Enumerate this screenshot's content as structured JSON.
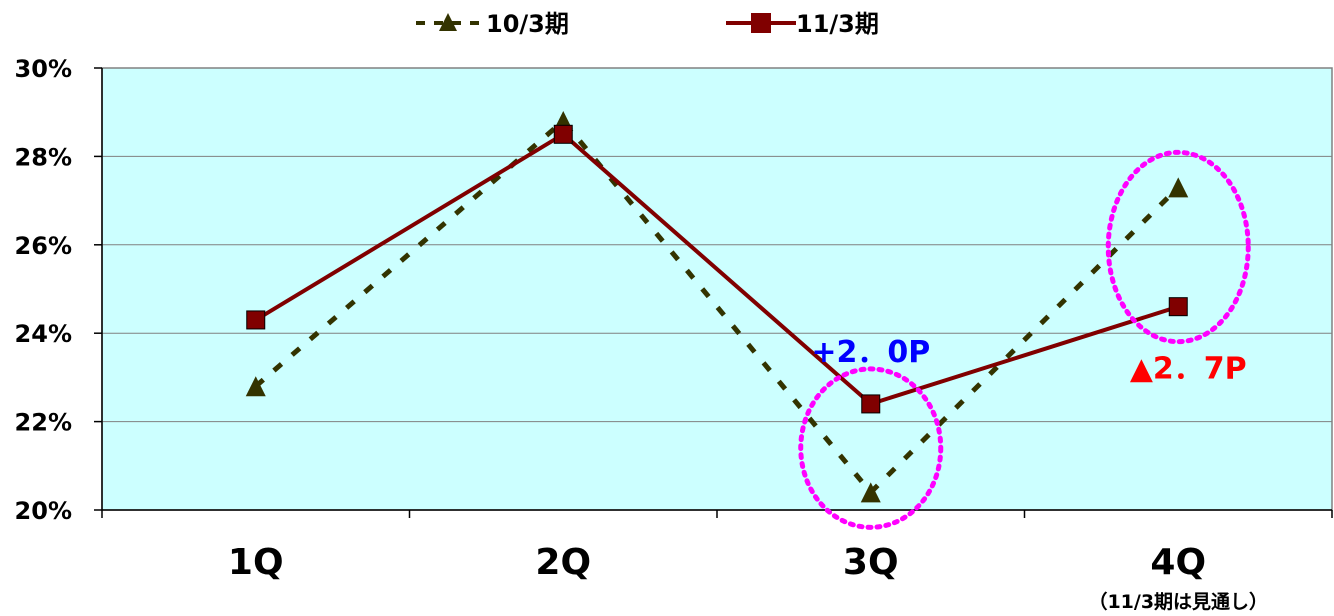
{
  "chart_data": {
    "type": "line",
    "categories": [
      "1Q",
      "2Q",
      "3Q",
      "4Q"
    ],
    "category_note": {
      "category": "4Q",
      "text": "（11/3期は見通し）"
    },
    "ylim": [
      20,
      30
    ],
    "yticks": [
      20,
      22,
      24,
      26,
      28,
      30
    ],
    "ytick_labels": [
      "20%",
      "22%",
      "24%",
      "26%",
      "28%",
      "30%"
    ],
    "grid": true,
    "legend": "top",
    "background_color": "#ccffff",
    "series": [
      {
        "name": "10/3期",
        "values": [
          22.8,
          28.8,
          20.4,
          27.3
        ],
        "color": "#333300",
        "marker": "triangle",
        "style": "dashed"
      },
      {
        "name": "11/3期",
        "values": [
          24.3,
          28.5,
          22.4,
          24.6
        ],
        "color": "#800000",
        "marker": "square",
        "style": "solid"
      }
    ],
    "annotations": [
      {
        "text": "+2．0P",
        "category": "3Q",
        "color": "#0000ff"
      },
      {
        "text": "▲2．7P",
        "category": "4Q",
        "color": "#ff0000"
      }
    ],
    "highlight_color": "#ff00ff"
  }
}
